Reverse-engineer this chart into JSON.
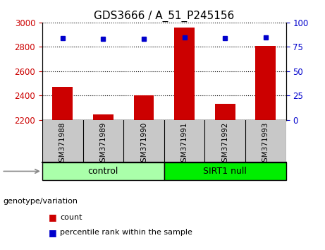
{
  "title": "GDS3666 / A_51_P245156",
  "samples": [
    "GSM371988",
    "GSM371989",
    "GSM371990",
    "GSM371991",
    "GSM371992",
    "GSM371993"
  ],
  "counts": [
    2470,
    2245,
    2400,
    2960,
    2330,
    2810
  ],
  "percentile_ranks": [
    84,
    83,
    83,
    85,
    84,
    85
  ],
  "ylim_left": [
    2200,
    3000
  ],
  "ylim_right": [
    0,
    100
  ],
  "yticks_left": [
    2200,
    2400,
    2600,
    2800,
    3000
  ],
  "yticks_right": [
    0,
    25,
    50,
    75,
    100
  ],
  "group_labels": [
    "control",
    "SIRT1 null"
  ],
  "group_colors": [
    "#AAFFAA",
    "#00EE00"
  ],
  "group_sizes": [
    3,
    3
  ],
  "genotype_label": "genotype/variation",
  "legend_count_label": "count",
  "legend_percentile_label": "percentile rank within the sample",
  "legend_count_color": "#CC0000",
  "legend_percentile_color": "#0000CC",
  "bar_color": "#CC0000",
  "dot_color": "#0000CC",
  "tick_color_left": "#CC0000",
  "tick_color_right": "#0000CC",
  "xtick_bg_color": "#C8C8C8",
  "plot_bg_color": "white",
  "title_fontsize": 11,
  "bar_width": 0.5
}
